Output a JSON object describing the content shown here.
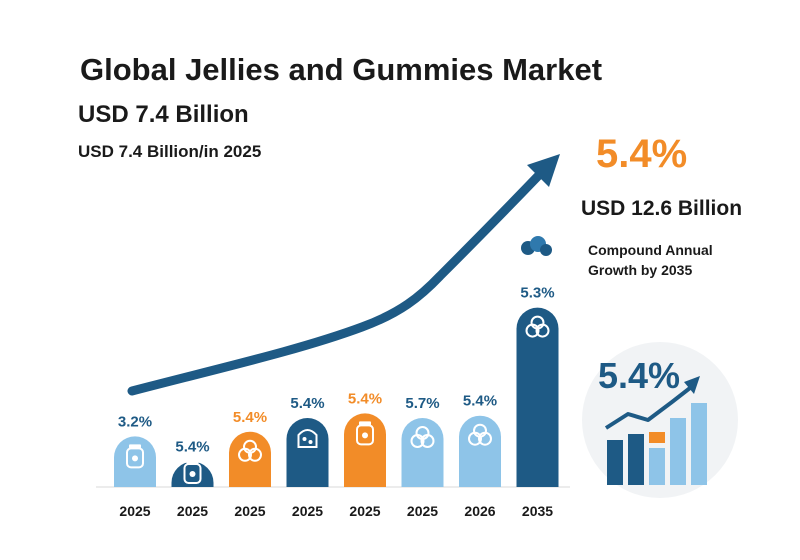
{
  "title": "Global Jellies and Gummies Market",
  "headline": "USD 7.4 Billion",
  "subheadline": "USD 7.4 Billion/in 2025",
  "cagr_value": "5.4%",
  "future_value": "USD 12.6 Billion",
  "cagr_description": "Compound Annual Growth by 2035",
  "inset_label": "5.4%",
  "colors": {
    "light_blue": "#8ec4e8",
    "dark_blue": "#1e5a85",
    "orange": "#f28c28",
    "text_dark": "#1a1a1a"
  },
  "chart_data": {
    "type": "bar",
    "categories": [
      "2025",
      "2025",
      "2025",
      "2025",
      "2025",
      "2025",
      "2026",
      "2035"
    ],
    "values": [
      3.2,
      5.4,
      5.4,
      5.4,
      5.4,
      5.7,
      5.4,
      5.3
    ],
    "data_labels": [
      "3.2%",
      "5.4%",
      "5.4%",
      "5.4%",
      "5.4%",
      "5.7%",
      "5.4%",
      "5.3%"
    ],
    "bar_colors": [
      "light_blue",
      "dark_blue",
      "orange",
      "dark_blue",
      "orange",
      "light_blue",
      "light_blue",
      "dark_blue"
    ],
    "bar_icons": [
      "jar-icon",
      "jar-icon",
      "gummy-cluster-icon",
      "gummy-icon",
      "jar-icon",
      "gummy-cluster-icon",
      "gummy-cluster-icon",
      "gummy-cluster-icon"
    ],
    "relative_heights": [
      0.22,
      0.11,
      0.24,
      0.3,
      0.32,
      0.3,
      0.31,
      0.78
    ],
    "trend_arrow": true,
    "grid": false,
    "legend": "none"
  }
}
